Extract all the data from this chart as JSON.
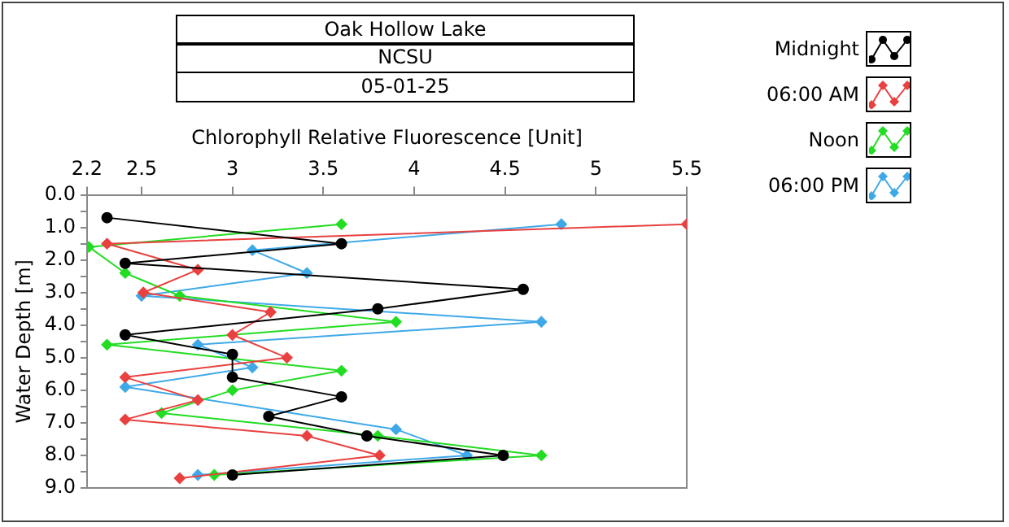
{
  "chart_data": {
    "type": "line",
    "title": "Oak Hollow Lake",
    "subtitle": "NCSU",
    "annotations": [
      "05-01-25"
    ],
    "xlabel": "Chlorophyll Relative Fluorescence [Unit]",
    "ylabel": "Water Depth [m]",
    "xlim": [
      2.2,
      5.5
    ],
    "xticks": [
      2.2,
      2.5,
      3,
      3.5,
      4,
      4.5,
      5,
      5.5
    ],
    "ylim": [
      9,
      0
    ],
    "yticks": [
      {
        "value": 0,
        "label": "0.0"
      },
      {
        "value": 0.5,
        "label": null
      },
      {
        "value": 1,
        "label": "1.0"
      },
      {
        "value": 1.5,
        "label": null
      },
      {
        "value": 2,
        "label": "2.0"
      },
      {
        "value": 2.5,
        "label": null
      },
      {
        "value": 3,
        "label": "3.0"
      },
      {
        "value": 3.5,
        "label": null
      },
      {
        "value": 4,
        "label": "4.0"
      },
      {
        "value": 4.5,
        "label": null
      },
      {
        "value": 5,
        "label": "5.0"
      },
      {
        "value": 5.5,
        "label": null
      },
      {
        "value": 6,
        "label": "6.0"
      },
      {
        "value": 6.5,
        "label": null
      },
      {
        "value": 7,
        "label": "7.0"
      },
      {
        "value": 7.5,
        "label": null
      },
      {
        "value": 8,
        "label": "8.0"
      },
      {
        "value": 8.5,
        "label": null
      },
      {
        "value": 9,
        "label": "9.0"
      }
    ],
    "grid": false,
    "legend": "top right",
    "line_style": "solid",
    "series": [
      {
        "name": "Midnight",
        "color": "#000000",
        "marker": "circle",
        "x": [
          2.31,
          3.6,
          2.41,
          4.6,
          3.8,
          2.41,
          3.0,
          3.0,
          3.6,
          3.2,
          3.74,
          4.49,
          3.0
        ],
        "values": [
          0.7,
          1.5,
          2.1,
          2.9,
          3.5,
          4.3,
          4.9,
          5.6,
          6.2,
          6.8,
          7.4,
          8.0,
          8.6
        ]
      },
      {
        "name": "06:00 AM",
        "color": "#e8413f",
        "marker": "diamond",
        "x": [
          5.5,
          2.31,
          2.81,
          2.51,
          3.21,
          3.0,
          3.3,
          2.41,
          2.81,
          2.41,
          3.41,
          3.81,
          2.71
        ],
        "values": [
          0.9,
          1.5,
          2.3,
          3.0,
          3.6,
          4.3,
          5.0,
          5.6,
          6.3,
          6.9,
          7.4,
          8.0,
          8.7
        ]
      },
      {
        "name": "Noon",
        "color": "#22dd22",
        "marker": "diamond",
        "x": [
          3.6,
          2.21,
          2.41,
          2.71,
          3.9,
          2.31,
          3.6,
          3.0,
          2.61,
          3.8,
          4.7,
          2.9
        ],
        "values": [
          0.9,
          1.6,
          2.4,
          3.1,
          3.9,
          4.6,
          5.4,
          6.0,
          6.7,
          7.4,
          8.0,
          8.6
        ]
      },
      {
        "name": "06:00 PM",
        "color": "#3fa9e8",
        "marker": "diamond",
        "x": [
          4.81,
          3.11,
          3.41,
          2.5,
          4.7,
          2.81,
          3.11,
          2.41,
          3.9,
          4.29,
          2.81
        ],
        "values": [
          0.9,
          1.7,
          2.4,
          3.1,
          3.9,
          4.6,
          5.3,
          5.9,
          7.2,
          8.0,
          8.6
        ]
      }
    ]
  }
}
